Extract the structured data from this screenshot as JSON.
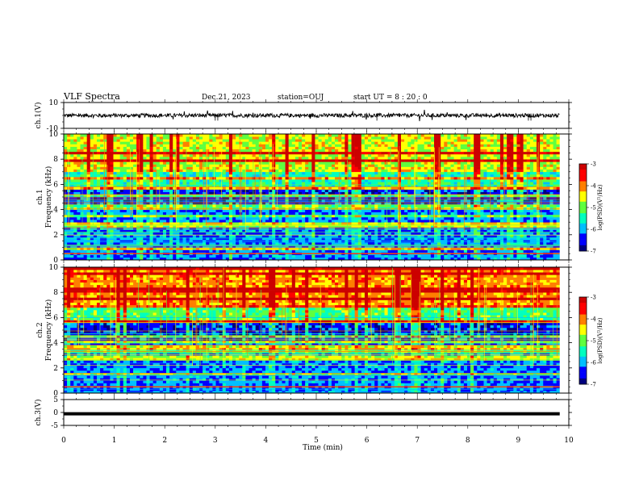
{
  "header": {
    "title": "VLF Spectra",
    "date": "Dec.21, 2023",
    "station": "station=OUJ",
    "start": "start  UT =   8  : 20 : 0"
  },
  "chart_data": [
    {
      "type": "line",
      "name": "ch1-waveform",
      "ylabel": "ch.1(V)",
      "ylim": [
        -10,
        10
      ],
      "y_ticks": [
        "10",
        "-10"
      ],
      "baseline": 0,
      "amplitude": 1.5
    },
    {
      "type": "heatmap",
      "name": "ch1-spectrogram",
      "ylabel": "ch.1\nFrequency (kHz)",
      "ylabel_lines": [
        "ch.1",
        "Frequency (kHz)"
      ],
      "ylim": [
        0,
        10
      ],
      "y_ticks": [
        "0",
        "2",
        "4",
        "6",
        "8",
        "10"
      ],
      "colorbar": {
        "label": "log(PSD)(V²/Hz)",
        "ticks": [
          "-3",
          "-4",
          "-5",
          "-6",
          "-7"
        ],
        "range": [
          -7,
          -3
        ]
      }
    },
    {
      "type": "heatmap",
      "name": "ch2-spectrogram",
      "ylabel_lines": [
        "ch.2",
        "Frequency (kHz)"
      ],
      "ylim": [
        0,
        10
      ],
      "y_ticks": [
        "0",
        "2",
        "4",
        "6",
        "8",
        "10"
      ],
      "colorbar": {
        "label": "log(PSD)(V²/Hz)",
        "ticks": [
          "-3",
          "-4",
          "-5",
          "-6",
          "-7"
        ],
        "range": [
          -7,
          -3
        ]
      }
    },
    {
      "type": "line",
      "name": "ch3-waveform",
      "ylabel": "ch.3(V)",
      "ylim": [
        -5,
        5
      ],
      "y_ticks": [
        "5",
        "0",
        "-5"
      ],
      "baseline": -0.5
    }
  ],
  "x_axis": {
    "label": "Time  (min)",
    "ticks": [
      "0",
      "1",
      "2",
      "3",
      "4",
      "5",
      "6",
      "7",
      "8",
      "9",
      "10"
    ],
    "range": [
      0,
      10
    ]
  },
  "colors": {
    "colormap": [
      "#00007f",
      "#0000ff",
      "#00bfff",
      "#00ffbf",
      "#5fff3f",
      "#ffff00",
      "#ff7f00",
      "#ff0000",
      "#cc0000"
    ]
  }
}
